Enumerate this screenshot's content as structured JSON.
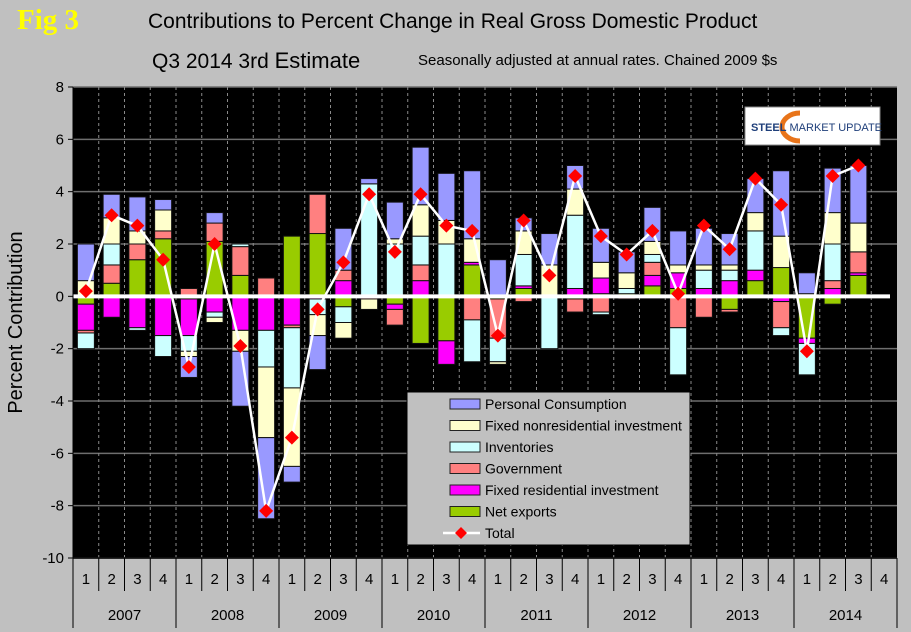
{
  "figure": {
    "label": "Fig 3",
    "title": "Contributions to Percent Change in Real Gross Domestic Product",
    "subtitle_prefix": "Q3 2014 3rd",
    "subtitle_emph": "Estimate",
    "subtitle_note": "Seasonally adjusted at annual rates. Chained 2009 $s",
    "logo_text_bold": "STEEL",
    "logo_text_rest": " MARKET UPDATE"
  },
  "colors": {
    "background": "#c0c0c0",
    "plot_bg": "#000000",
    "personal_consumption": "#9999ff",
    "fixed_nonres": "#ffffcc",
    "inventories": "#ccffff",
    "government": "#ff8080",
    "fixed_res": "#ff00ff",
    "net_exports": "#99cc00",
    "total_line": "#ffffff",
    "total_marker": "#ff0000",
    "fig_label": "#ffff00"
  },
  "chart_data": {
    "type": "bar",
    "stacked": true,
    "title": "Contributions to Percent Change in Real Gross Domestic Product",
    "subtitle": "Q3 2014 3rd Estimate — Seasonally adjusted at annual rates. Chained 2009 $s",
    "xlabel": "",
    "ylabel": "Percent Contribution",
    "ylim": [
      -10,
      8
    ],
    "yticks": [
      8,
      6,
      4,
      2,
      0,
      -2,
      -4,
      -6,
      -8,
      -10
    ],
    "grid": true,
    "legend_position": "bottom-center",
    "years": [
      "2007",
      "2008",
      "2009",
      "2010",
      "2011",
      "2012",
      "2013",
      "2014"
    ],
    "quarter_labels": [
      "1",
      "2",
      "3",
      "4"
    ],
    "categories": [
      "2007 Q1",
      "2007 Q2",
      "2007 Q3",
      "2007 Q4",
      "2008 Q1",
      "2008 Q2",
      "2008 Q3",
      "2008 Q4",
      "2009 Q1",
      "2009 Q2",
      "2009 Q3",
      "2009 Q4",
      "2010 Q1",
      "2010 Q2",
      "2010 Q3",
      "2010 Q4",
      "2011 Q1",
      "2011 Q2",
      "2011 Q3",
      "2011 Q4",
      "2012 Q1",
      "2012 Q2",
      "2012 Q3",
      "2012 Q4",
      "2013 Q1",
      "2013 Q2",
      "2013 Q3",
      "2013 Q4",
      "2014 Q1",
      "2014 Q2",
      "2014 Q3",
      "2014 Q4"
    ],
    "series": [
      {
        "name": "Net exports",
        "key": "net_exports",
        "values": [
          -0.3,
          0.5,
          1.4,
          2.2,
          -0.1,
          2.1,
          0.8,
          0.0,
          2.3,
          2.4,
          -0.4,
          0.0,
          -0.3,
          -1.8,
          -1.7,
          1.2,
          -0.1,
          0.3,
          0.0,
          -0.1,
          0.1,
          0.1,
          0.4,
          0.3,
          0.0,
          -0.5,
          0.6,
          1.1,
          -1.6,
          -0.3,
          0.8,
          null
        ]
      },
      {
        "name": "Fixed residential investment",
        "key": "fixed_res",
        "values": [
          -1.0,
          -0.8,
          -1.2,
          -1.5,
          -1.4,
          -0.6,
          -1.3,
          -1.3,
          -1.1,
          -0.1,
          0.6,
          0.0,
          -0.2,
          0.6,
          -0.9,
          0.1,
          0.0,
          0.1,
          0.0,
          0.3,
          0.6,
          0.0,
          0.4,
          0.6,
          0.3,
          0.6,
          0.4,
          -0.2,
          -0.2,
          0.3,
          0.1,
          null
        ]
      },
      {
        "name": "Government",
        "key": "government",
        "values": [
          -0.1,
          0.7,
          0.6,
          0.3,
          0.3,
          0.7,
          1.1,
          0.7,
          -0.1,
          1.5,
          0.4,
          -0.1,
          -0.6,
          0.6,
          0.0,
          -0.9,
          -1.5,
          -0.2,
          0.0,
          -0.5,
          -0.6,
          -0.1,
          0.5,
          -1.2,
          -0.8,
          -0.1,
          0.0,
          -1.0,
          0.0,
          0.3,
          0.8,
          null
        ]
      },
      {
        "name": "Inventories",
        "key": "inventories",
        "values": [
          -0.6,
          0.8,
          -0.1,
          -0.8,
          -0.6,
          -0.2,
          0.1,
          -1.4,
          -2.3,
          -0.6,
          -0.6,
          4.3,
          2.0,
          1.1,
          2.0,
          -1.6,
          -0.9,
          1.2,
          -2.0,
          2.8,
          -0.1,
          0.2,
          0.3,
          -1.8,
          0.7,
          0.4,
          1.5,
          -0.3,
          -1.2,
          1.4,
          0.0,
          null
        ]
      },
      {
        "name": "Fixed nonresidential investment",
        "key": "fixed_nonres",
        "values": [
          0.6,
          1.0,
          0.5,
          0.8,
          -0.2,
          -0.2,
          -0.8,
          -2.7,
          -3.0,
          -0.8,
          -0.6,
          -0.4,
          0.2,
          1.2,
          0.9,
          0.9,
          -0.1,
          0.9,
          1.2,
          1.0,
          0.6,
          0.6,
          0.5,
          0.3,
          0.2,
          0.2,
          0.7,
          1.2,
          0.1,
          1.2,
          1.1,
          null
        ]
      },
      {
        "name": "Personal Consumption",
        "key": "personal_consumption",
        "values": [
          1.4,
          0.9,
          1.3,
          0.4,
          -0.8,
          0.4,
          -2.1,
          -3.1,
          -0.6,
          -1.3,
          1.6,
          0.2,
          1.4,
          2.2,
          1.8,
          2.6,
          1.4,
          0.5,
          1.2,
          0.9,
          1.3,
          0.8,
          1.3,
          1.3,
          1.4,
          1.2,
          1.3,
          2.5,
          0.8,
          1.7,
          2.2,
          null
        ]
      }
    ],
    "total": {
      "name": "Total",
      "values": [
        0.2,
        3.1,
        2.7,
        1.4,
        -2.7,
        2.0,
        -1.9,
        -8.2,
        -5.4,
        -0.5,
        1.3,
        3.9,
        1.7,
        3.9,
        2.7,
        2.5,
        -1.5,
        2.9,
        0.8,
        4.6,
        2.3,
        1.6,
        2.5,
        0.1,
        2.7,
        1.8,
        4.5,
        3.5,
        -2.1,
        4.6,
        5.0,
        null
      ]
    },
    "legend": [
      {
        "label": "Personal Consumption",
        "key": "personal_consumption"
      },
      {
        "label": "Fixed nonresidential investment",
        "key": "fixed_nonres"
      },
      {
        "label": "Inventories",
        "key": "inventories"
      },
      {
        "label": "Government",
        "key": "government"
      },
      {
        "label": "Fixed residential investment",
        "key": "fixed_res"
      },
      {
        "label": "Net exports",
        "key": "net_exports"
      },
      {
        "label": "Total",
        "key": "total"
      }
    ]
  }
}
